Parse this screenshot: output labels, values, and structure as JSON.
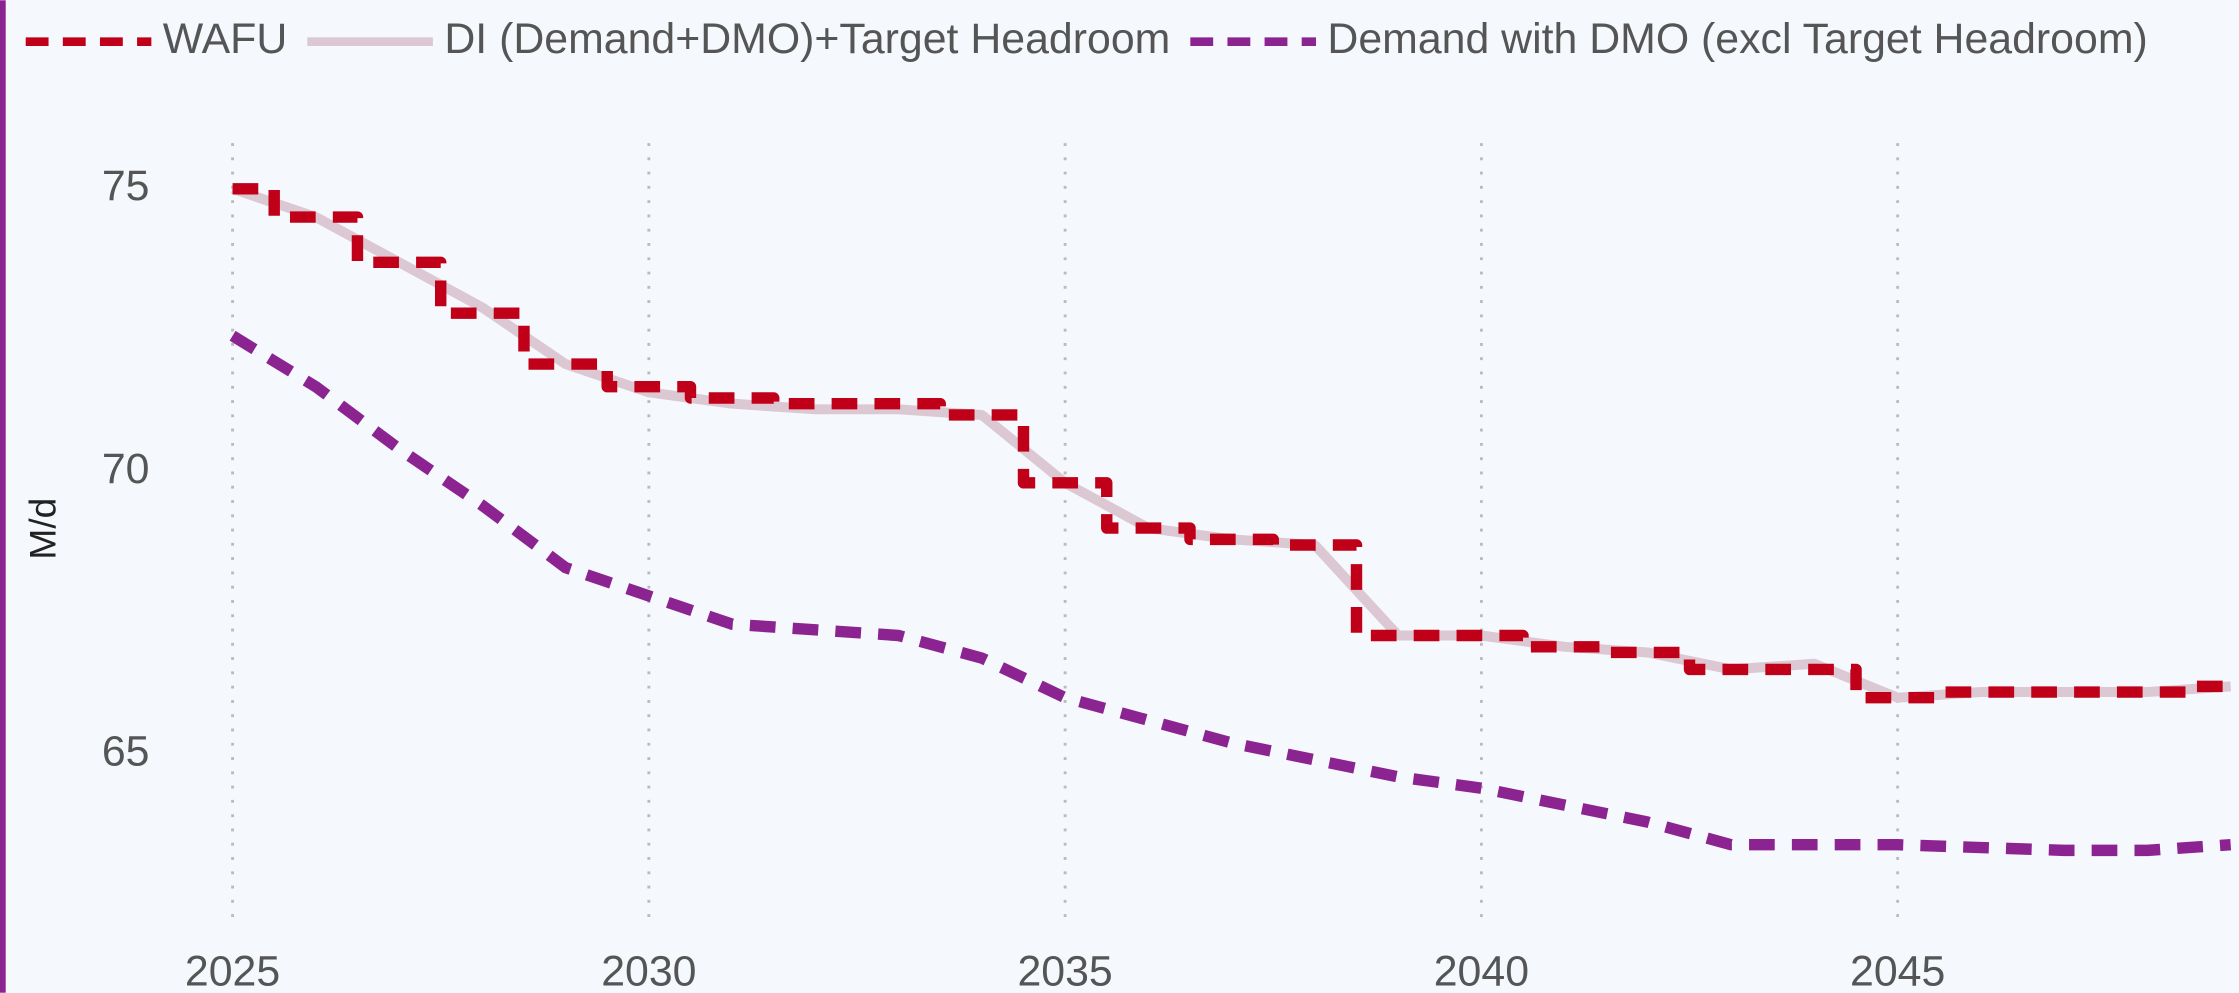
{
  "chart_data": {
    "type": "line",
    "y_label": "M/d",
    "x": [
      2025,
      2026,
      2027,
      2028,
      2029,
      2030,
      2031,
      2032,
      2033,
      2034,
      2035,
      2036,
      2037,
      2038,
      2039,
      2040,
      2041,
      2042,
      2043,
      2044,
      2045,
      2046,
      2047,
      2048,
      2049
    ],
    "series": [
      {
        "name": "WAFU",
        "color": "#c00018",
        "dash": true,
        "line_shape": "step-mid",
        "values": [
          75.0,
          74.5,
          73.7,
          72.8,
          71.9,
          71.5,
          71.3,
          71.2,
          71.2,
          71.0,
          69.8,
          69.0,
          68.8,
          68.7,
          67.1,
          67.1,
          66.9,
          66.8,
          66.5,
          66.5,
          66.0,
          66.1,
          66.1,
          66.1,
          66.2
        ]
      },
      {
        "name": "DI (Demand+DMO)+Target Headroom",
        "color": "#dcc8d2",
        "dash": false,
        "line_shape": "linear",
        "values": [
          75.0,
          74.5,
          73.7,
          72.9,
          71.9,
          71.4,
          71.2,
          71.1,
          71.1,
          71.0,
          69.8,
          69.0,
          68.8,
          68.7,
          67.1,
          67.1,
          66.9,
          66.8,
          66.5,
          66.6,
          66.0,
          66.1,
          66.1,
          66.1,
          66.2
        ]
      },
      {
        "name": "Demand with DMO (excl Target Headroom)",
        "color": "#8b2491",
        "dash": true,
        "line_shape": "linear",
        "values": [
          72.4,
          71.5,
          70.4,
          69.4,
          68.3,
          67.8,
          67.3,
          67.2,
          67.1,
          66.7,
          66.0,
          65.6,
          65.2,
          64.9,
          64.6,
          64.4,
          64.1,
          63.8,
          63.4,
          63.4,
          63.4,
          63.35,
          63.3,
          63.3,
          63.4
        ]
      }
    ],
    "xlim": [
      2024.1,
      2049.1
    ],
    "xticks": [
      2025,
      2030,
      2035,
      2040,
      2045
    ],
    "ylim": [
      62,
      76
    ],
    "yticks": [
      65,
      70,
      75
    ],
    "grid": "x",
    "legend": "top"
  }
}
